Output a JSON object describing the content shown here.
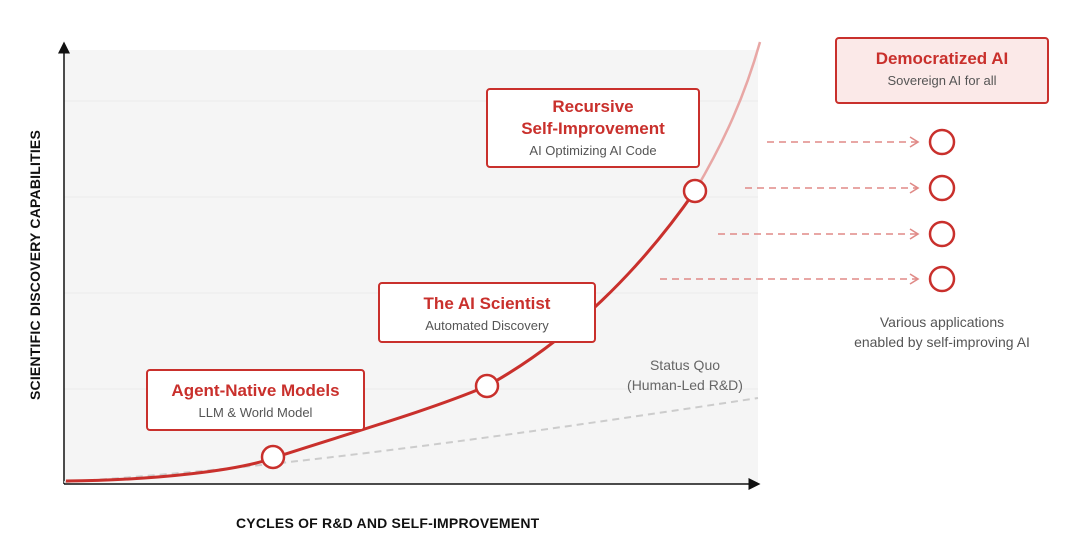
{
  "axes": {
    "y_label": "SCIENTIFIC DISCOVERY CAPABILITIES",
    "x_label": "CYCLES OF R&D AND SELF-IMPROVEMENT"
  },
  "milestones": [
    {
      "title": "Agent-Native Models",
      "subtitle": "LLM & World Model"
    },
    {
      "title": "The AI Scientist",
      "subtitle": "Automated Discovery"
    },
    {
      "title_line1": "Recursive",
      "title_line2": "Self-Improvement",
      "subtitle": "AI Optimizing AI Code"
    }
  ],
  "destination": {
    "title": "Democratized AI",
    "subtitle": "Sovereign AI for all"
  },
  "status_quo": {
    "line1": "Status Quo",
    "line2": "(Human-Led R&D)"
  },
  "applications": {
    "count": 4,
    "line1": "Various applications",
    "line2": "enabled by self-improving AI"
  },
  "colors": {
    "accent": "#c9302c",
    "accent_light": "#e8a7a5",
    "plot_bg": "#f5f5f5",
    "grid": "#eaeaea",
    "status_quo_line": "#cccccc"
  }
}
